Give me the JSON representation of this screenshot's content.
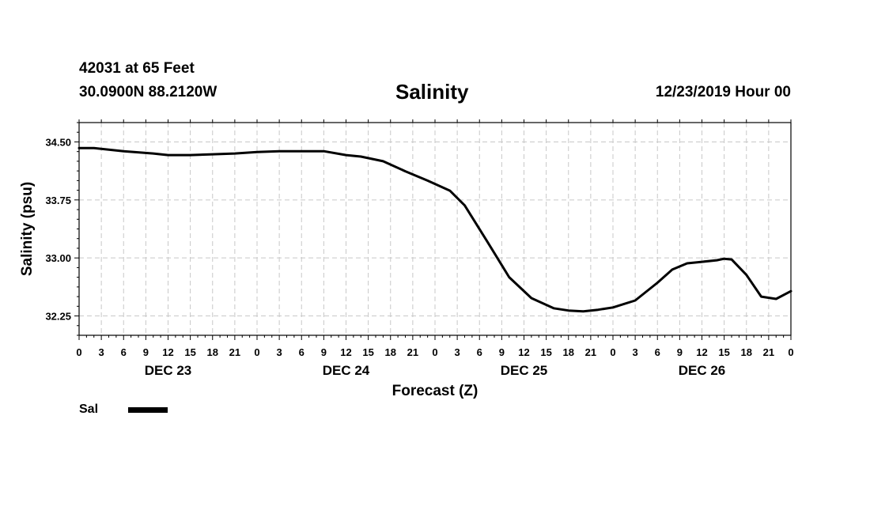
{
  "header": {
    "station": "42031 at 65 Feet",
    "coords": "30.0900N 88.2120W",
    "title": "Salinity",
    "datetime": "12/23/2019 Hour 00"
  },
  "legend": {
    "label": "Sal",
    "color": "#000000"
  },
  "chart_data": {
    "type": "line",
    "title": "Salinity",
    "xlabel": "Forecast (Z)",
    "ylabel": "Salinity (psu)",
    "ylim": [
      32.0,
      34.75
    ],
    "yticks": [
      32.25,
      33.0,
      33.75,
      34.5
    ],
    "ytick_labels": [
      "32.25",
      "33.00",
      "33.75",
      "34.50"
    ],
    "xlim": [
      0,
      96
    ],
    "xtick_step_hours": 3,
    "xtick_labels": [
      "0",
      "3",
      "6",
      "9",
      "12",
      "15",
      "18",
      "21",
      "0",
      "3",
      "6",
      "9",
      "12",
      "15",
      "18",
      "21",
      "0",
      "3",
      "6",
      "9",
      "12",
      "15",
      "18",
      "21",
      "0",
      "3",
      "6",
      "9",
      "12",
      "15",
      "18",
      "21",
      "0"
    ],
    "days": [
      {
        "label": "DEC 23",
        "center_hour": 12
      },
      {
        "label": "DEC 24",
        "center_hour": 36
      },
      {
        "label": "DEC 25",
        "center_hour": 60
      },
      {
        "label": "DEC 26",
        "center_hour": 84
      }
    ],
    "grid": true,
    "series": [
      {
        "name": "Sal",
        "x": [
          0,
          2,
          6,
          10,
          12,
          15,
          18,
          21,
          24,
          27,
          30,
          33,
          36,
          38,
          41,
          44,
          47,
          50,
          52,
          55,
          58,
          61,
          64,
          66,
          68,
          70,
          72,
          75,
          78,
          80,
          82,
          84,
          86,
          87,
          88,
          90,
          92,
          94,
          96
        ],
        "y": [
          34.42,
          34.42,
          34.38,
          34.35,
          34.33,
          34.33,
          34.34,
          34.35,
          34.37,
          34.38,
          34.38,
          34.38,
          34.33,
          34.31,
          34.25,
          34.12,
          34.0,
          33.87,
          33.68,
          33.22,
          32.75,
          32.48,
          32.35,
          32.32,
          32.31,
          32.33,
          32.36,
          32.45,
          32.68,
          32.85,
          32.93,
          32.95,
          32.97,
          32.99,
          32.98,
          32.78,
          32.5,
          32.47,
          32.57
        ]
      }
    ]
  }
}
